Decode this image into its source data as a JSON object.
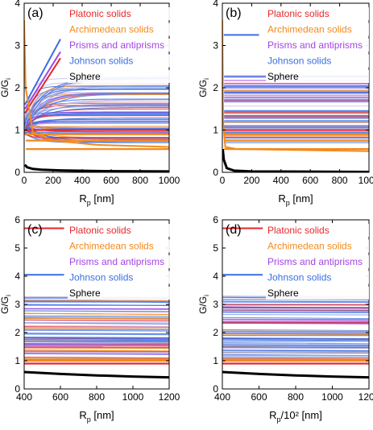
{
  "chart_data": [
    {
      "type": "line",
      "panel_label": "(a)",
      "xlabel": "R",
      "xlabel_sub": "p",
      "xlabel_unit": " [nm]",
      "ylabel": "G/G",
      "ylabel_sub": "i",
      "xlim": [
        0,
        1000
      ],
      "ylim": [
        0,
        4
      ],
      "xticks": [
        "0",
        "200",
        "400",
        "600",
        "800",
        "1000"
      ],
      "yticks": [
        "0",
        "1",
        "2",
        "3",
        "4"
      ],
      "grid": false,
      "legend_position": "top-right",
      "legend": [
        {
          "name": "Platonic solids",
          "color": "#e8262b"
        },
        {
          "name": "Archimedean solids",
          "color": "#f28a1e"
        },
        {
          "name": "Prisms and antiprisms",
          "color": "#a245e3"
        },
        {
          "name": "Johnson solids",
          "color": "#3b6fe0"
        },
        {
          "name": "Sphere",
          "color": "#000000"
        }
      ],
      "series": [
        {
          "name": "Sphere",
          "x": [
            5,
            20,
            60,
            120,
            250,
            500,
            1000
          ],
          "values": [
            0.18,
            0.12,
            0.08,
            0.06,
            0.045,
            0.03,
            0.02
          ]
        },
        {
          "name": "Platonic solids (top)",
          "x": [
            5,
            250
          ],
          "values": [
            1.4,
            2.7
          ]
        },
        {
          "name": "Prisms and antiprisms (top)",
          "x": [
            5,
            250
          ],
          "values": [
            1.5,
            2.85
          ]
        },
        {
          "name": "Johnson solids (top)",
          "x": [
            5,
            250
          ],
          "values": [
            1.6,
            3.15
          ]
        },
        {
          "name": "Archimedean solids (peak)",
          "x": [
            0,
            10,
            60,
            200,
            500,
            1000
          ],
          "values": [
            3.6,
            2.0,
            0.95,
            0.75,
            0.65,
            0.6
          ]
        }
      ]
    },
    {
      "type": "line",
      "panel_label": "(b)",
      "xlabel": "R",
      "xlabel_sub": "p",
      "xlabel_unit": " [nm]",
      "ylabel": "G/G",
      "ylabel_sub": "i",
      "xlim": [
        0,
        1000
      ],
      "ylim": [
        0,
        4
      ],
      "xticks": [
        "0",
        "200",
        "400",
        "600",
        "800",
        "1000"
      ],
      "yticks": [
        "0",
        "1",
        "2",
        "3",
        "4"
      ],
      "grid": false,
      "legend_position": "top-right",
      "legend": [
        {
          "name": "Platonic solids",
          "color": "#e8262b"
        },
        {
          "name": "Archimedean solids",
          "color": "#f28a1e"
        },
        {
          "name": "Prisms and antiprisms",
          "color": "#a245e3"
        },
        {
          "name": "Johnson solids",
          "color": "#3b6fe0"
        },
        {
          "name": "Sphere",
          "color": "#000000"
        }
      ],
      "series": [
        {
          "name": "Sphere",
          "x": [
            3,
            10,
            30,
            80,
            200,
            1000
          ],
          "values": [
            0.55,
            0.3,
            0.1,
            0.04,
            0.02,
            0.01
          ]
        },
        {
          "name": "Johnson solids (top)",
          "x": [
            10,
            250
          ],
          "values": [
            3.25,
            3.25
          ]
        },
        {
          "name": "Archimedean solids (peak)",
          "x": [
            0,
            5,
            20,
            100,
            1000
          ],
          "values": [
            3.6,
            1.2,
            0.6,
            0.55,
            0.5
          ]
        }
      ]
    },
    {
      "type": "line",
      "panel_label": "(c)",
      "xlabel": "R",
      "xlabel_sub": "p",
      "xlabel_unit": " [nm]",
      "ylabel": "G/G",
      "ylabel_sub": "i",
      "xlim": [
        400,
        1200
      ],
      "ylim": [
        0,
        6
      ],
      "xticks": [
        "400",
        "600",
        "800",
        "1000",
        "1200"
      ],
      "yticks": [
        "0",
        "1",
        "2",
        "3",
        "4",
        "5",
        "6"
      ],
      "grid": false,
      "legend_position": "top-right",
      "legend": [
        {
          "name": "Platonic solids",
          "color": "#e8262b"
        },
        {
          "name": "Archimedean solids",
          "color": "#f28a1e"
        },
        {
          "name": "Prisms and antiprisms",
          "color": "#a245e3"
        },
        {
          "name": "Johnson solids",
          "color": "#3b6fe0"
        },
        {
          "name": "Sphere",
          "color": "#000000"
        }
      ],
      "series": [
        {
          "name": "Sphere",
          "x": [
            400,
            600,
            800,
            1000,
            1200
          ],
          "values": [
            0.6,
            0.53,
            0.48,
            0.44,
            0.41
          ]
        },
        {
          "name": "Johnson solids (top)",
          "x": [
            400,
            620
          ],
          "values": [
            4.05,
            4.05
          ]
        },
        {
          "name": "Platonic solids (top)",
          "x": [
            400,
            620
          ],
          "values": [
            5.7,
            5.7
          ]
        }
      ]
    },
    {
      "type": "line",
      "panel_label": "(d)",
      "xlabel": "R",
      "xlabel_sub": "p",
      "xlabel_unit": "/10² [nm]",
      "ylabel": "G/G",
      "ylabel_sub": "i",
      "xlim": [
        400,
        1200
      ],
      "ylim": [
        0,
        6
      ],
      "xticks": [
        "400",
        "600",
        "800",
        "1000",
        "1200"
      ],
      "yticks": [
        "0",
        "1",
        "2",
        "3",
        "4",
        "5",
        "6"
      ],
      "grid": false,
      "legend_position": "top-right",
      "legend": [
        {
          "name": "Platonic solids",
          "color": "#e8262b"
        },
        {
          "name": "Archimedean solids",
          "color": "#f28a1e"
        },
        {
          "name": "Prisms and antiprisms",
          "color": "#a245e3"
        },
        {
          "name": "Johnson solids",
          "color": "#3b6fe0"
        },
        {
          "name": "Sphere",
          "color": "#000000"
        }
      ],
      "series": [
        {
          "name": "Sphere",
          "x": [
            400,
            600,
            800,
            1000,
            1200
          ],
          "values": [
            0.6,
            0.53,
            0.48,
            0.44,
            0.41
          ]
        },
        {
          "name": "Johnson solids (top)",
          "x": [
            400,
            620
          ],
          "values": [
            4.05,
            4.05
          ]
        },
        {
          "name": "Platonic solids (top)",
          "x": [
            400,
            620
          ],
          "values": [
            5.7,
            5.7
          ]
        }
      ]
    }
  ]
}
